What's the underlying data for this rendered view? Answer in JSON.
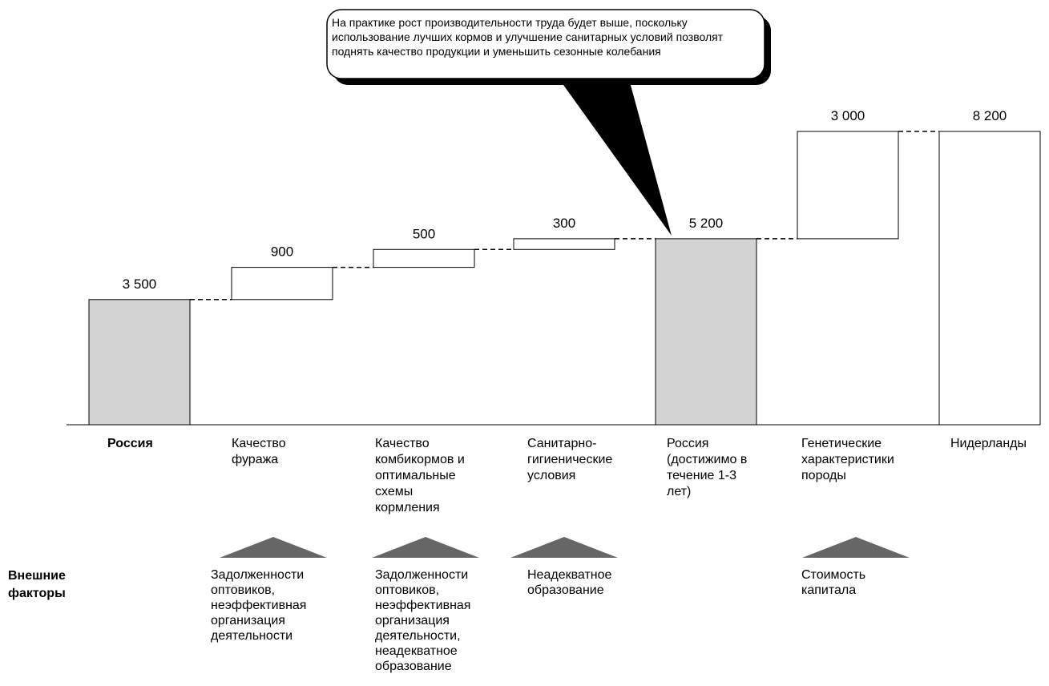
{
  "chart_data": {
    "type": "waterfall",
    "steps": [
      {
        "label": "Россия",
        "value_label": "3 500",
        "base": 0,
        "value": 3500,
        "kind": "total",
        "bold": true
      },
      {
        "label": "Качество\nфуража",
        "value_label": "900",
        "base": 3500,
        "value": 900,
        "kind": "delta"
      },
      {
        "label": "Качество\nкомбикормов и\nоптимальные\nсхемы\nкормления",
        "value_label": "500",
        "base": 4400,
        "value": 500,
        "kind": "delta"
      },
      {
        "label": "Санитарно-\nгигиенические\nусловия",
        "value_label": "300",
        "base": 4900,
        "value": 300,
        "kind": "delta"
      },
      {
        "label": "Россия\n(достижимо в\nтечение 1-3\nлет)",
        "value_label": "5 200",
        "base": 0,
        "value": 5200,
        "kind": "total"
      },
      {
        "label": "Генетические\nхарактеристики\nпороды",
        "value_label": "3 000",
        "base": 5200,
        "value": 3000,
        "kind": "delta"
      },
      {
        "label": "Нидерланды",
        "value_label": "8 200",
        "base": 0,
        "value": 8200,
        "kind": "total_white"
      }
    ],
    "ylim": [
      0,
      8200
    ],
    "colors": {
      "total": "#d3d3d3",
      "delta": "#ffffff",
      "stroke": "#000000",
      "triangle": "#666666"
    }
  },
  "callout": {
    "text": "На практике рост производительности труда будет выше, поскольку использование лучших кормов и улучшение санитарных условий позволят поднять качество продукции и уменьшить сезонные колебания"
  },
  "external": {
    "label": "Внешние\nфакторы",
    "factors": [
      {
        "step": 1,
        "text": "Задолженности\nоптовиков,\nнеэффективная\nорганизация\nдеятельности"
      },
      {
        "step": 2,
        "text": "Задолженности\nоптовиков,\nнеэффективная\nорганизация\nдеятельности,\nнеадекватное\nобразование"
      },
      {
        "step": 3,
        "text": "Неадекватное\nобразование"
      },
      {
        "step": 5,
        "text": "Стоимость\nкапитала"
      }
    ]
  }
}
